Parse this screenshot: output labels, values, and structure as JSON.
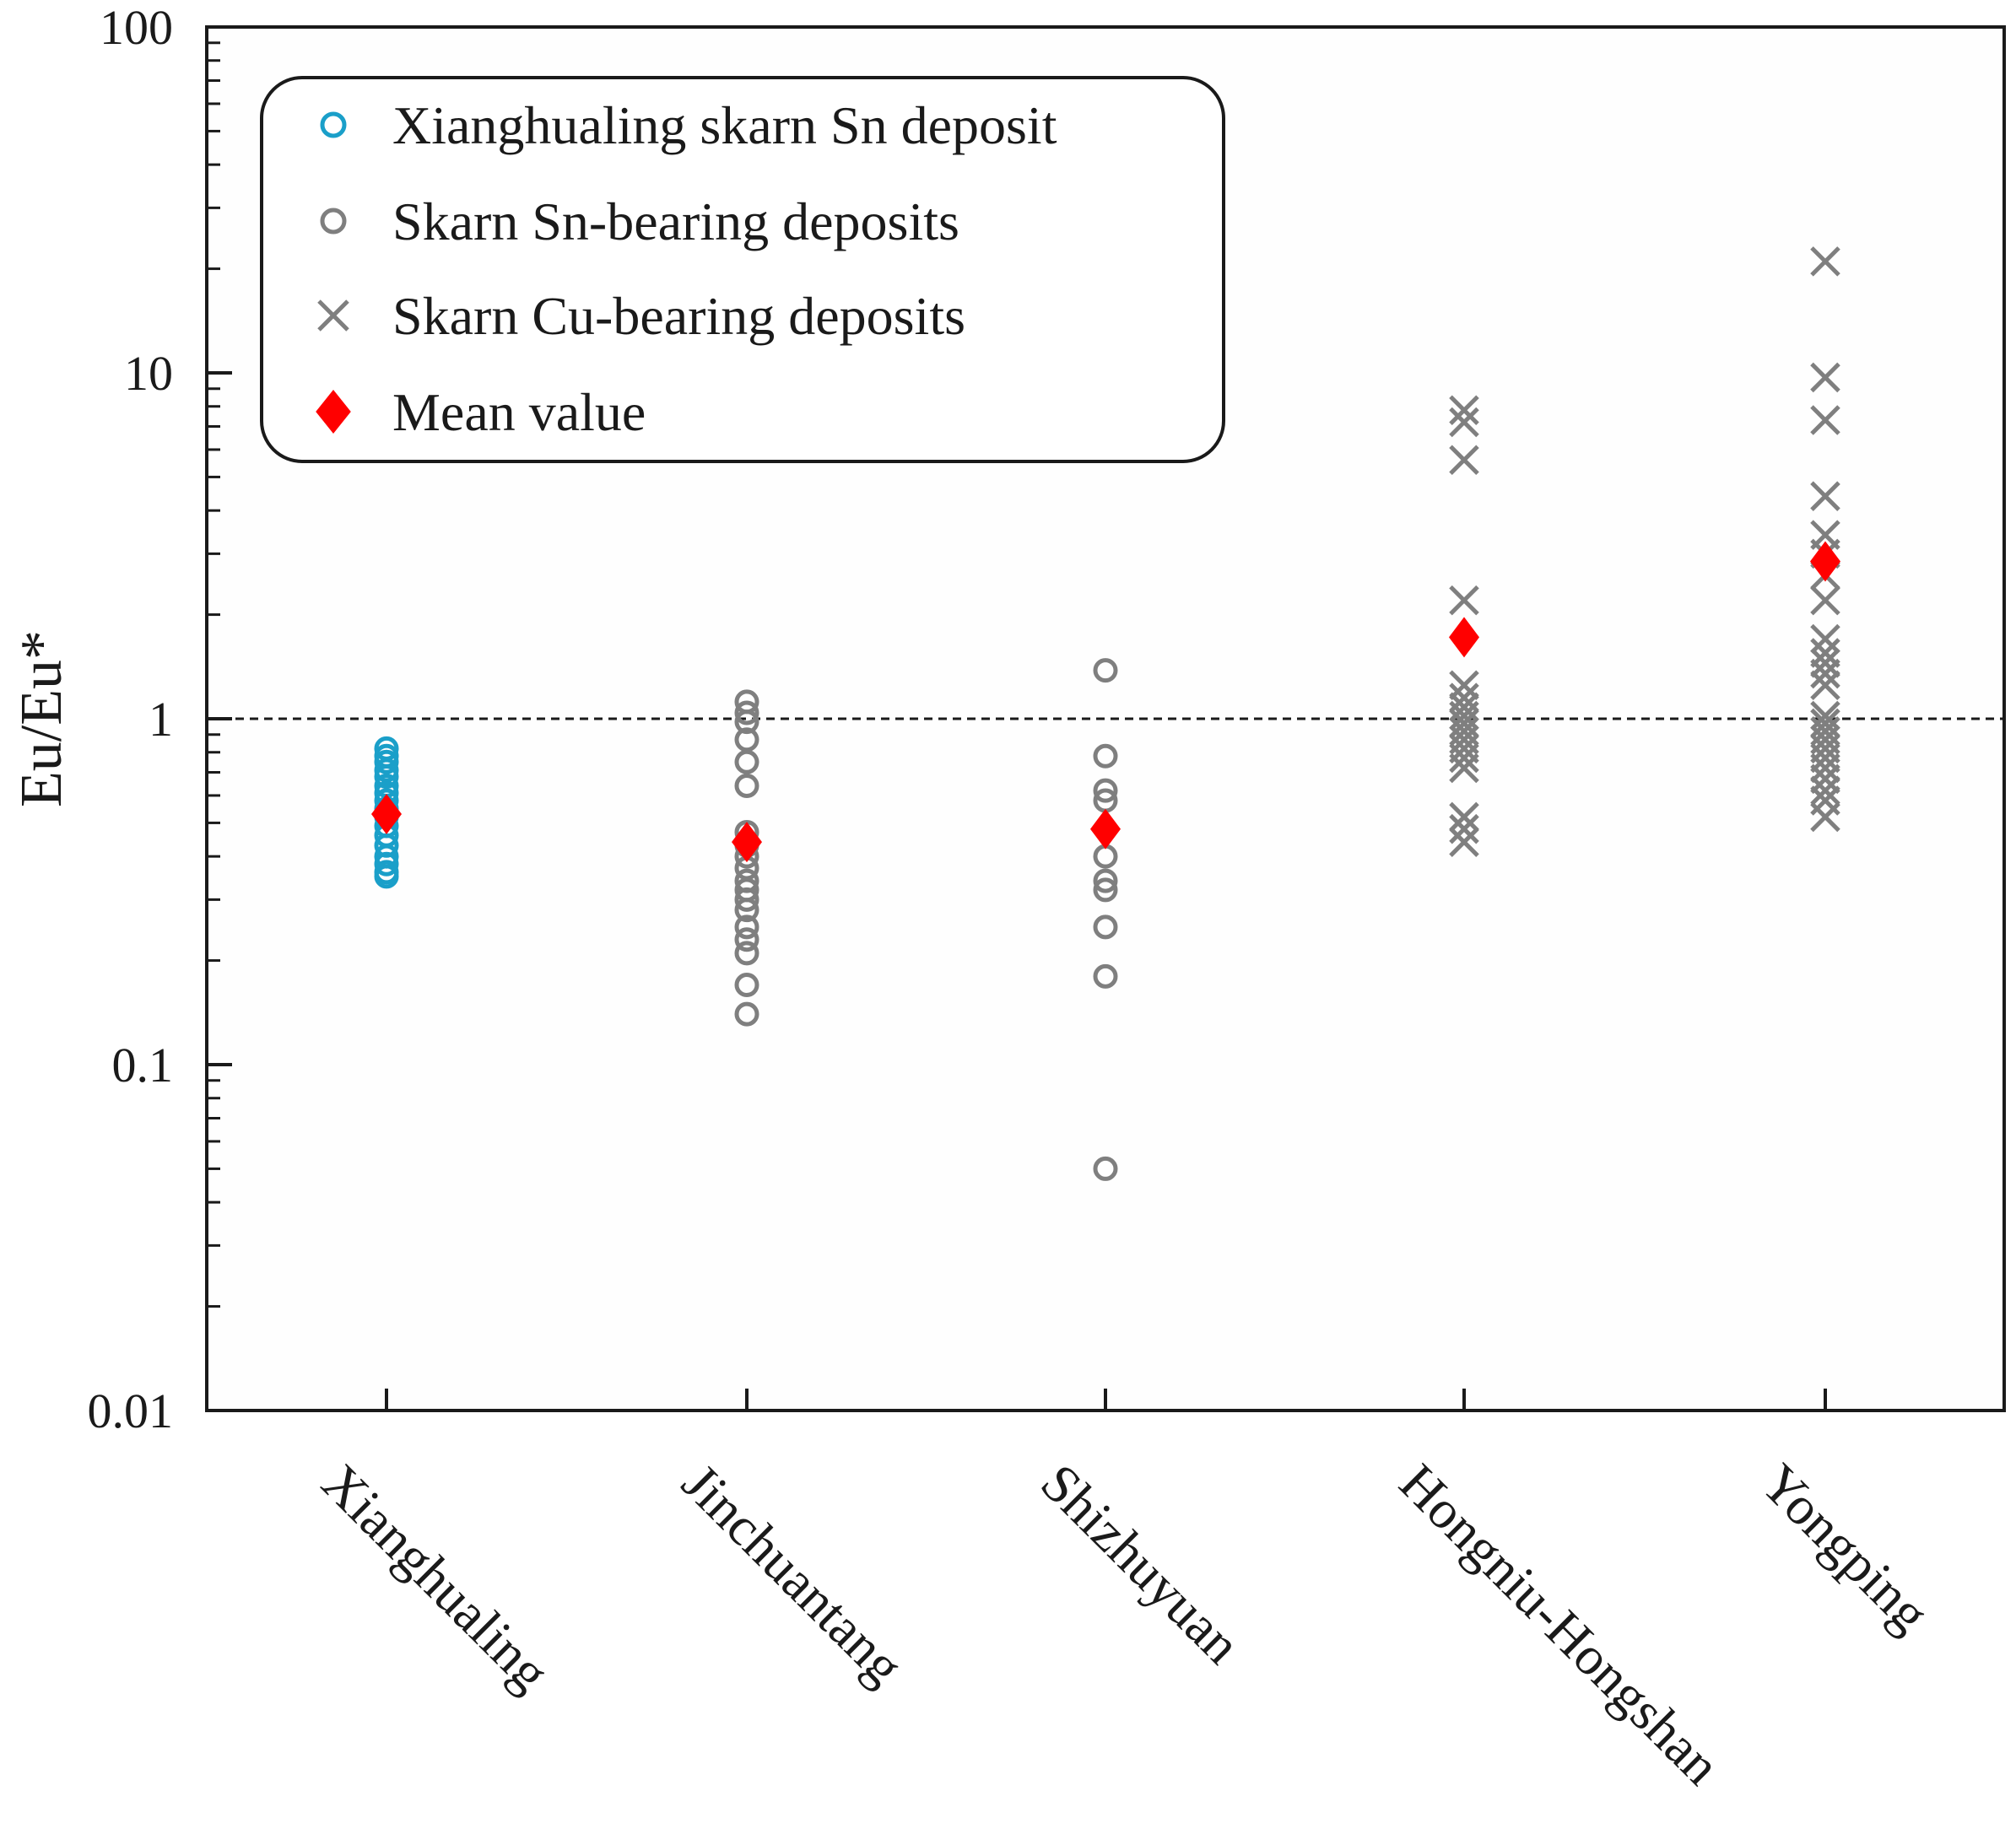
{
  "chart_data": {
    "type": "scatter",
    "title": "",
    "ylabel": "Eu/Eu*",
    "xlabel": "",
    "y_scale": "log",
    "ylim": [
      0.01,
      100
    ],
    "y_tick_labels": [
      "0.01",
      "0.1",
      "1",
      "10",
      "100"
    ],
    "reference_line": 1,
    "legend_position": "top-left",
    "categories": [
      "Xianghualing",
      "Jinchuantang",
      "Shizhuyuan",
      "Hongniu-Hongshan",
      "Yongping"
    ],
    "series": [
      {
        "name": "Xianghualing skarn Sn deposit",
        "marker": "open-circle",
        "color": "#1a9fc9",
        "points": [
          {
            "category": "Xianghualing",
            "values": [
              0.82,
              0.78,
              0.75,
              0.71,
              0.68,
              0.64,
              0.61,
              0.58,
              0.55,
              0.52,
              0.49,
              0.46,
              0.43,
              0.4,
              0.38,
              0.36,
              0.35
            ]
          }
        ]
      },
      {
        "name": "Skarn Sn-bearing deposits",
        "marker": "open-circle",
        "color": "#7f7f7f",
        "points": [
          {
            "category": "Jinchuantang",
            "values": [
              1.12,
              1.04,
              0.98,
              0.87,
              0.75,
              0.64,
              0.47,
              0.43,
              0.4,
              0.37,
              0.34,
              0.32,
              0.3,
              0.28,
              0.25,
              0.23,
              0.21,
              0.17,
              0.14
            ]
          },
          {
            "category": "Shizhuyuan",
            "values": [
              1.38,
              0.78,
              0.62,
              0.58,
              0.4,
              0.34,
              0.32,
              0.25,
              0.18,
              0.05
            ]
          }
        ]
      },
      {
        "name": "Skarn Cu-bearing deposits",
        "marker": "cross",
        "color": "#7f7f7f",
        "points": [
          {
            "category": "Hongniu-Hongshan",
            "values": [
              7.8,
              7.2,
              5.6,
              2.2,
              1.25,
              1.15,
              1.08,
              1.02,
              0.97,
              0.92,
              0.87,
              0.82,
              0.77,
              0.72,
              0.52,
              0.48,
              0.44
            ]
          },
          {
            "category": "Yongping",
            "values": [
              21,
              9.7,
              7.3,
              4.4,
              3.4,
              3.0,
              2.6,
              2.2,
              1.7,
              1.55,
              1.45,
              1.35,
              1.25,
              1.02,
              0.97,
              0.92,
              0.87,
              0.82,
              0.77,
              0.72,
              0.67,
              0.62,
              0.58,
              0.52
            ]
          }
        ]
      },
      {
        "name": "Mean value",
        "marker": "diamond",
        "color": "#ff0000",
        "points": [
          {
            "category": "Xianghualing",
            "values": [
              0.53
            ]
          },
          {
            "category": "Jinchuantang",
            "values": [
              0.44
            ]
          },
          {
            "category": "Shizhuyuan",
            "values": [
              0.48
            ]
          },
          {
            "category": "Hongniu-Hongshan",
            "values": [
              1.72
            ]
          },
          {
            "category": "Yongping",
            "values": [
              2.85
            ]
          }
        ]
      }
    ]
  }
}
